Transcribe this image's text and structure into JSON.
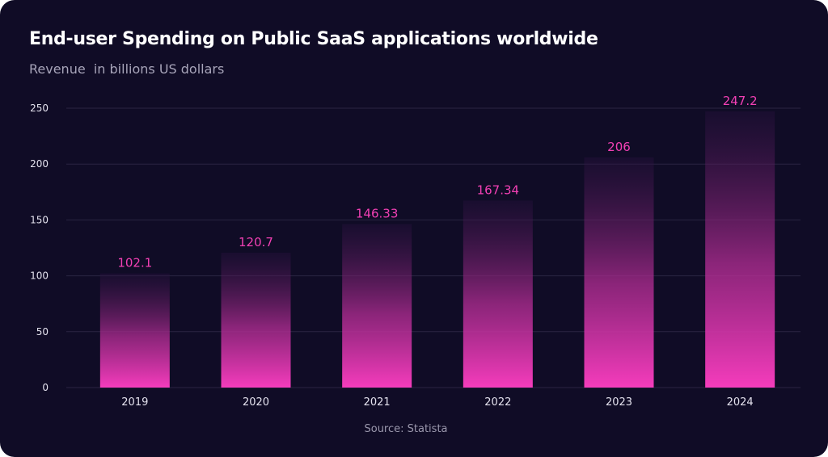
{
  "chart_data": {
    "type": "bar",
    "title": "End-user Spending on Public SaaS applications worldwide",
    "subtitle": "Revenue  in billions US dollars",
    "xlabel": "",
    "ylabel": "",
    "categories": [
      "2019",
      "2020",
      "2021",
      "2022",
      "2023",
      "2024"
    ],
    "values": [
      102.1,
      120.7,
      146.33,
      167.34,
      206,
      247.2
    ],
    "value_labels": [
      "102.1",
      "120.7",
      "146.33",
      "167.34",
      "206",
      "247.2"
    ],
    "ylim": [
      0,
      250
    ],
    "yticks": [
      0,
      50,
      100,
      150,
      200,
      250
    ],
    "grid": true,
    "legend": "none",
    "source": "Source: Statista"
  },
  "colors": {
    "background": "#100c26",
    "bar_bottom": "#f53cbc",
    "bar_top": "#2a1240",
    "value_label": "#f240b4",
    "gridline": "#2a2542",
    "axis_text": "#e4e2ee"
  }
}
